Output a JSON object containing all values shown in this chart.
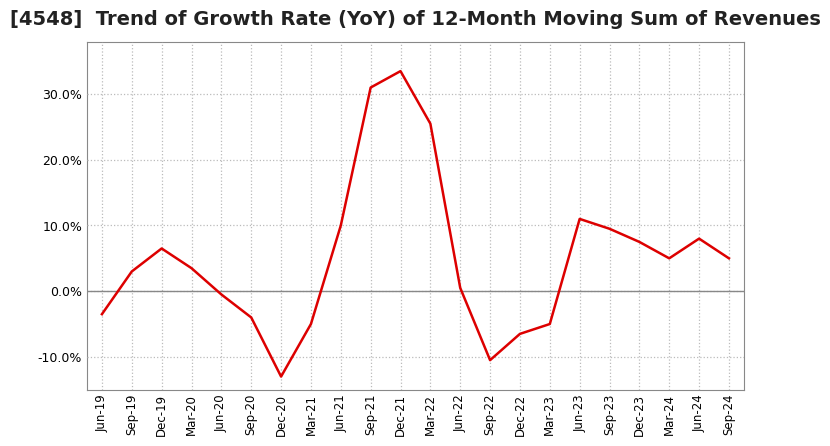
{
  "title": "[4548]  Trend of Growth Rate (YoY) of 12-Month Moving Sum of Revenues",
  "title_fontsize": 14,
  "line_color": "#dd0000",
  "background_color": "#ffffff",
  "grid_color": "#bbbbbb",
  "zero_line_color": "#888888",
  "x_labels": [
    "Jun-19",
    "Sep-19",
    "Dec-19",
    "Mar-20",
    "Jun-20",
    "Sep-20",
    "Dec-20",
    "Mar-21",
    "Jun-21",
    "Sep-21",
    "Dec-21",
    "Mar-22",
    "Jun-22",
    "Sep-22",
    "Dec-22",
    "Mar-23",
    "Jun-23",
    "Sep-23",
    "Dec-23",
    "Mar-24",
    "Jun-24",
    "Sep-24"
  ],
  "y_values": [
    -3.5,
    3.0,
    6.5,
    3.5,
    -0.5,
    -4.0,
    -13.0,
    -5.0,
    10.0,
    31.0,
    33.5,
    25.5,
    0.5,
    -10.5,
    -6.5,
    -5.0,
    11.0,
    9.5,
    7.5,
    5.0,
    8.0,
    5.0
  ],
  "ylim": [
    -15,
    38
  ],
  "yticks": [
    -10.0,
    0.0,
    10.0,
    20.0,
    30.0
  ]
}
